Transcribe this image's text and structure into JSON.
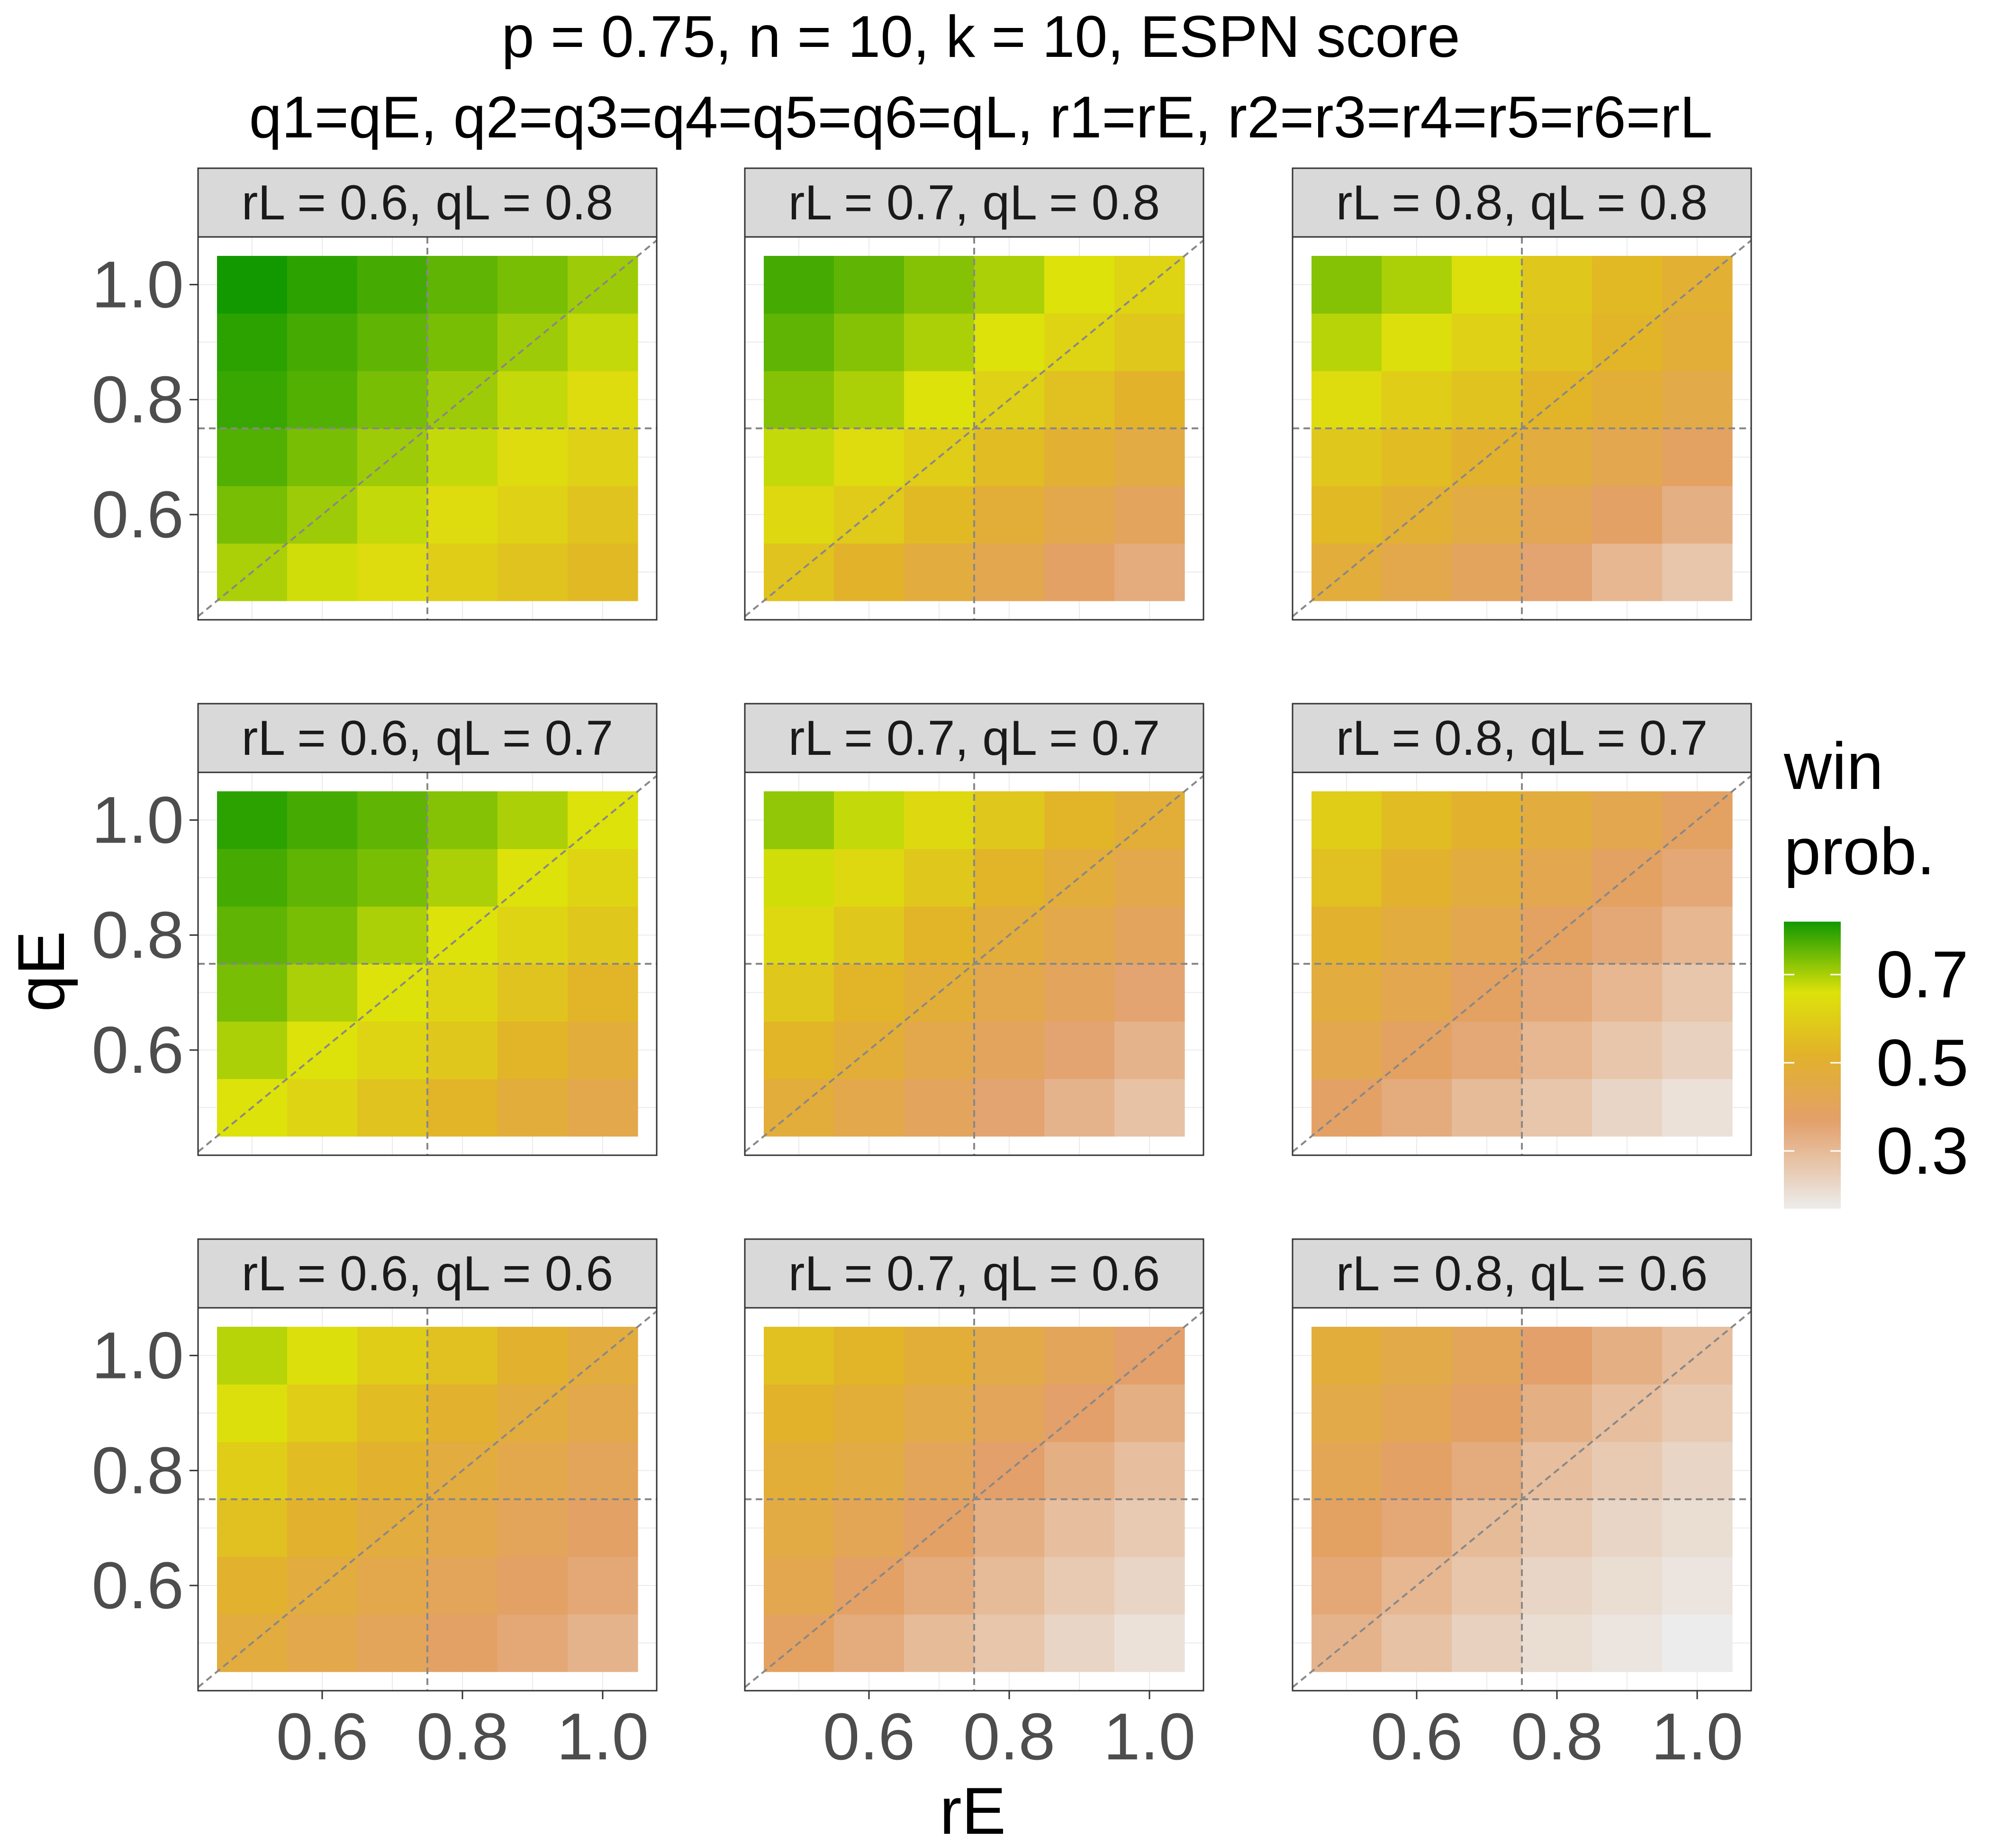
{
  "title": {
    "line1": "p = 0.75, n = 10, k = 10, ESPN score",
    "line2": "q1=qE,  q2=q3=q4=q5=q6=qL, r1=rE,  r2=r3=r4=r5=r6=rL"
  },
  "axes": {
    "xlabel": "rE",
    "ylabel": "qE",
    "x_ticks": [
      "0.6",
      "0.8",
      "1.0"
    ],
    "y_ticks": [
      "0.6",
      "0.8",
      "1.0"
    ]
  },
  "legend": {
    "title_line1": "win",
    "title_line2": "prob.",
    "ticks": [
      "0.7",
      "0.5",
      "0.3"
    ],
    "range": [
      0.17,
      0.82
    ],
    "placement": "right"
  },
  "colors": {
    "low": "#ececec",
    "mid_low": "#e3a06a",
    "mid": "#e2b22a",
    "mid_high": "#dde20a",
    "high": "#139900",
    "strip_bg": "#d9d9d9",
    "reference_line": "#888888"
  },
  "chart_data": {
    "type": "heatmap",
    "x_values": [
      0.5,
      0.6,
      0.7,
      0.8,
      0.9,
      1.0
    ],
    "y_values": [
      0.5,
      0.6,
      0.7,
      0.8,
      0.9,
      1.0
    ],
    "xlim": [
      0.45,
      1.05
    ],
    "ylim": [
      0.45,
      1.05
    ],
    "reference_lines": {
      "vline": 0.75,
      "hline": 0.75,
      "diagonal": true
    },
    "value_name": "win prob.",
    "facets": [
      {
        "label": "rL = 0.6, qL = 0.8",
        "z": [
          [
            0.7,
            0.67,
            0.64,
            0.6,
            0.57,
            0.54
          ],
          [
            0.74,
            0.71,
            0.68,
            0.64,
            0.61,
            0.57
          ],
          [
            0.77,
            0.74,
            0.71,
            0.68,
            0.64,
            0.61
          ],
          [
            0.79,
            0.77,
            0.74,
            0.71,
            0.68,
            0.64
          ],
          [
            0.8,
            0.78,
            0.76,
            0.74,
            0.71,
            0.68
          ],
          [
            0.82,
            0.8,
            0.78,
            0.76,
            0.74,
            0.71
          ]
        ]
      },
      {
        "label": "rL = 0.7, qL = 0.8",
        "z": [
          [
            0.57,
            0.52,
            0.47,
            0.43,
            0.38,
            0.34
          ],
          [
            0.63,
            0.59,
            0.54,
            0.49,
            0.44,
            0.4
          ],
          [
            0.68,
            0.64,
            0.6,
            0.55,
            0.5,
            0.46
          ],
          [
            0.73,
            0.7,
            0.66,
            0.61,
            0.56,
            0.52
          ],
          [
            0.76,
            0.73,
            0.7,
            0.66,
            0.62,
            0.58
          ],
          [
            0.78,
            0.76,
            0.73,
            0.7,
            0.66,
            0.62
          ]
        ]
      },
      {
        "label": "rL = 0.8, qL = 0.8",
        "z": [
          [
            0.48,
            0.44,
            0.4,
            0.36,
            0.31,
            0.27
          ],
          [
            0.54,
            0.5,
            0.46,
            0.42,
            0.38,
            0.33
          ],
          [
            0.58,
            0.55,
            0.51,
            0.47,
            0.43,
            0.39
          ],
          [
            0.64,
            0.6,
            0.57,
            0.53,
            0.49,
            0.45
          ],
          [
            0.69,
            0.65,
            0.61,
            0.57,
            0.53,
            0.49
          ],
          [
            0.73,
            0.7,
            0.65,
            0.58,
            0.54,
            0.5
          ]
        ]
      },
      {
        "label": "rL = 0.6, qL = 0.7",
        "z": [
          [
            0.66,
            0.62,
            0.57,
            0.53,
            0.48,
            0.44
          ],
          [
            0.7,
            0.66,
            0.62,
            0.58,
            0.53,
            0.48
          ],
          [
            0.74,
            0.7,
            0.66,
            0.62,
            0.57,
            0.53
          ],
          [
            0.76,
            0.74,
            0.7,
            0.66,
            0.62,
            0.58
          ],
          [
            0.78,
            0.76,
            0.74,
            0.7,
            0.66,
            0.62
          ],
          [
            0.8,
            0.78,
            0.76,
            0.73,
            0.7,
            0.66
          ]
        ]
      },
      {
        "label": "rL = 0.7, qL = 0.7",
        "z": [
          [
            0.48,
            0.44,
            0.4,
            0.36,
            0.32,
            0.28
          ],
          [
            0.53,
            0.49,
            0.44,
            0.4,
            0.36,
            0.32
          ],
          [
            0.58,
            0.53,
            0.49,
            0.44,
            0.4,
            0.36
          ],
          [
            0.63,
            0.58,
            0.53,
            0.48,
            0.44,
            0.4
          ],
          [
            0.67,
            0.63,
            0.58,
            0.53,
            0.48,
            0.44
          ],
          [
            0.72,
            0.68,
            0.63,
            0.58,
            0.53,
            0.49
          ]
        ]
      },
      {
        "label": "rL = 0.8, qL = 0.7",
        "z": [
          [
            0.38,
            0.34,
            0.3,
            0.27,
            0.23,
            0.2
          ],
          [
            0.43,
            0.39,
            0.35,
            0.31,
            0.27,
            0.24
          ],
          [
            0.47,
            0.43,
            0.39,
            0.35,
            0.31,
            0.27
          ],
          [
            0.51,
            0.47,
            0.43,
            0.39,
            0.35,
            0.31
          ],
          [
            0.56,
            0.51,
            0.47,
            0.43,
            0.39,
            0.35
          ],
          [
            0.6,
            0.55,
            0.51,
            0.47,
            0.43,
            0.39
          ]
        ]
      },
      {
        "label": "rL = 0.6, qL = 0.6",
        "z": [
          [
            0.47,
            0.44,
            0.41,
            0.38,
            0.35,
            0.32
          ],
          [
            0.51,
            0.47,
            0.44,
            0.41,
            0.38,
            0.35
          ],
          [
            0.56,
            0.51,
            0.47,
            0.44,
            0.41,
            0.38
          ],
          [
            0.6,
            0.55,
            0.51,
            0.47,
            0.44,
            0.41
          ],
          [
            0.65,
            0.6,
            0.55,
            0.51,
            0.47,
            0.44
          ],
          [
            0.69,
            0.65,
            0.6,
            0.56,
            0.51,
            0.47
          ]
        ]
      },
      {
        "label": "rL = 0.7, qL = 0.6",
        "z": [
          [
            0.39,
            0.34,
            0.3,
            0.27,
            0.23,
            0.2
          ],
          [
            0.43,
            0.38,
            0.34,
            0.3,
            0.26,
            0.23
          ],
          [
            0.46,
            0.42,
            0.38,
            0.33,
            0.29,
            0.26
          ],
          [
            0.49,
            0.46,
            0.41,
            0.37,
            0.33,
            0.29
          ],
          [
            0.52,
            0.49,
            0.45,
            0.41,
            0.37,
            0.33
          ],
          [
            0.56,
            0.53,
            0.49,
            0.45,
            0.41,
            0.37
          ]
        ]
      },
      {
        "label": "rL = 0.8, qL = 0.6",
        "z": [
          [
            0.32,
            0.28,
            0.24,
            0.21,
            0.19,
            0.17
          ],
          [
            0.35,
            0.31,
            0.27,
            0.23,
            0.21,
            0.19
          ],
          [
            0.39,
            0.35,
            0.3,
            0.26,
            0.23,
            0.21
          ],
          [
            0.42,
            0.38,
            0.34,
            0.29,
            0.26,
            0.23
          ],
          [
            0.45,
            0.42,
            0.38,
            0.33,
            0.29,
            0.26
          ],
          [
            0.48,
            0.45,
            0.41,
            0.37,
            0.33,
            0.29
          ]
        ]
      }
    ]
  }
}
